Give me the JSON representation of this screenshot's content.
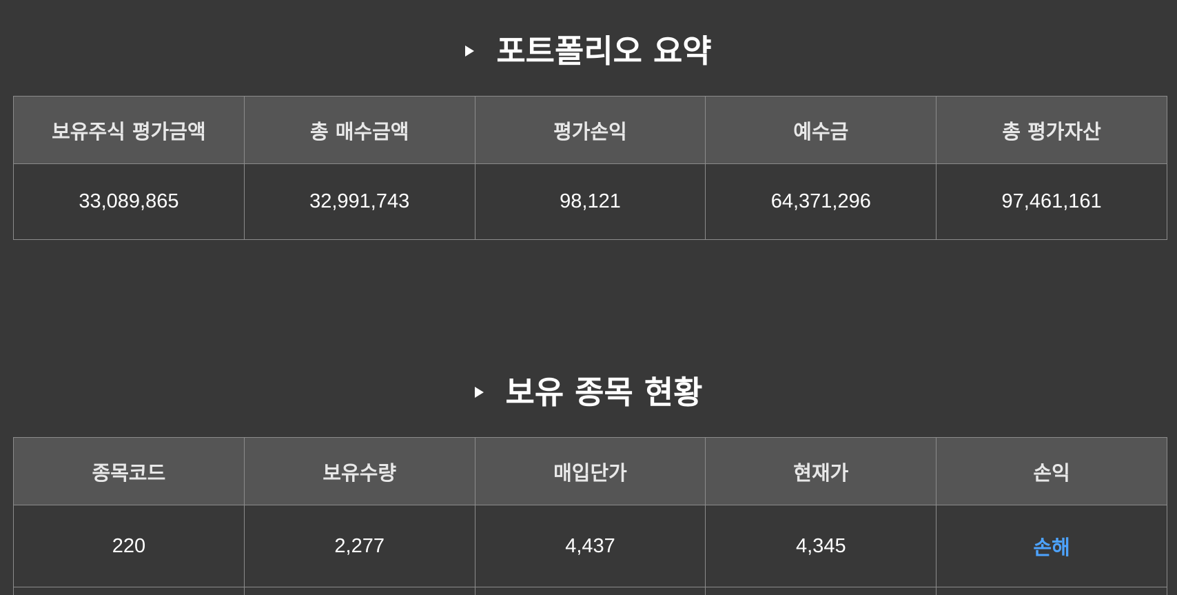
{
  "summary": {
    "title": "포트폴리오 요약",
    "headers": [
      "보유주식 평가금액",
      "총 매수금액",
      "평가손익",
      "예수금",
      "총 평가자산"
    ],
    "values": [
      "33,089,865",
      "32,991,743",
      "98,121",
      "64,371,296",
      "97,461,161"
    ]
  },
  "holdings": {
    "title": "보유 종목 현황",
    "headers": [
      "종목코드",
      "보유수량",
      "매입단가",
      "현재가",
      "손익"
    ],
    "rows": [
      [
        "220",
        "2,277",
        "4,437",
        "4,345",
        "손해"
      ]
    ]
  },
  "colors": {
    "background": "#383838",
    "header_bg": "#555555",
    "border": "#8c8c8c",
    "loss": "#4da3ff"
  },
  "icons": {
    "section_marker": "right-triangle-icon"
  }
}
